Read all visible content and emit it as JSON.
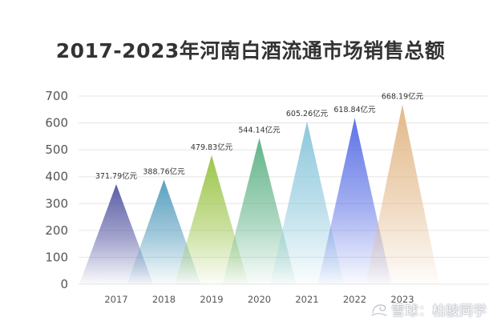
{
  "chart_data": {
    "type": "bar",
    "title": "2017-2023年河南白酒流通市场销售总额",
    "categories": [
      "2017",
      "2018",
      "2019",
      "2020",
      "2021",
      "2022",
      "2023"
    ],
    "values": [
      371.79,
      388.76,
      479.83,
      544.14,
      605.26,
      618.84,
      668.19
    ],
    "value_labels": [
      "371.79亿元",
      "388.76亿元",
      "479.83亿元",
      "544.14亿元",
      "605.26亿元",
      "618.84亿元",
      "668.19亿元"
    ],
    "y_ticks": [
      "0",
      "100",
      "200",
      "300",
      "400",
      "500",
      "600",
      "700"
    ],
    "ylim": [
      0,
      700
    ],
    "grid": true,
    "legend": "none",
    "colors": [
      "#5b5ea6",
      "#5aa0c0",
      "#9cc54a",
      "#62b489",
      "#8cc8dc",
      "#5d72e6",
      "#e3b98a"
    ]
  },
  "watermark": {
    "text": "雪球：柏骏同学"
  }
}
